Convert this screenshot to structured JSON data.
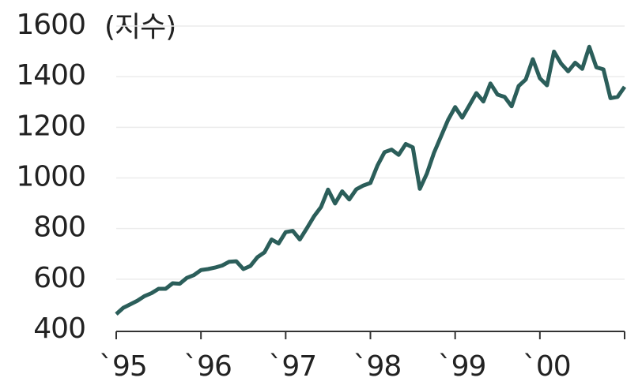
{
  "chart_data": {
    "type": "line",
    "y_label": "(지수)",
    "categories": [
      "`95",
      null,
      null,
      null,
      null,
      null,
      null,
      null,
      null,
      null,
      null,
      null,
      "`96",
      null,
      null,
      null,
      null,
      null,
      null,
      null,
      null,
      null,
      null,
      null,
      "`97",
      null,
      null,
      null,
      null,
      null,
      null,
      null,
      null,
      null,
      null,
      null,
      "`98",
      null,
      null,
      null,
      null,
      null,
      null,
      null,
      null,
      null,
      null,
      null,
      "`99",
      null,
      null,
      null,
      null,
      null,
      null,
      null,
      null,
      null,
      null,
      null,
      "`00",
      null,
      null,
      null,
      null,
      null,
      null,
      null,
      null,
      null,
      null,
      null,
      null
    ],
    "values": [
      462,
      487,
      501,
      515,
      533,
      545,
      562,
      562,
      584,
      582,
      605,
      616,
      636,
      640,
      646,
      654,
      669,
      671,
      640,
      652,
      687,
      706,
      757,
      741,
      786,
      791,
      757,
      801,
      848,
      885,
      954,
      899,
      947,
      915,
      955,
      970,
      980,
      1049,
      1102,
      1112,
      1091,
      1134,
      1121,
      957,
      1017,
      1099,
      1164,
      1229,
      1280,
      1238,
      1286,
      1335,
      1302,
      1373,
      1329,
      1320,
      1283,
      1363,
      1389,
      1469,
      1394,
      1366,
      1499,
      1452,
      1421,
      1455,
      1431,
      1518,
      1437,
      1429,
      1315,
      1320,
      1360
    ],
    "color": "#2b5e5a",
    "ylim": [
      400,
      1600
    ],
    "yticks": [
      400,
      600,
      800,
      1000,
      1200,
      1400,
      1600
    ],
    "grid": true
  }
}
